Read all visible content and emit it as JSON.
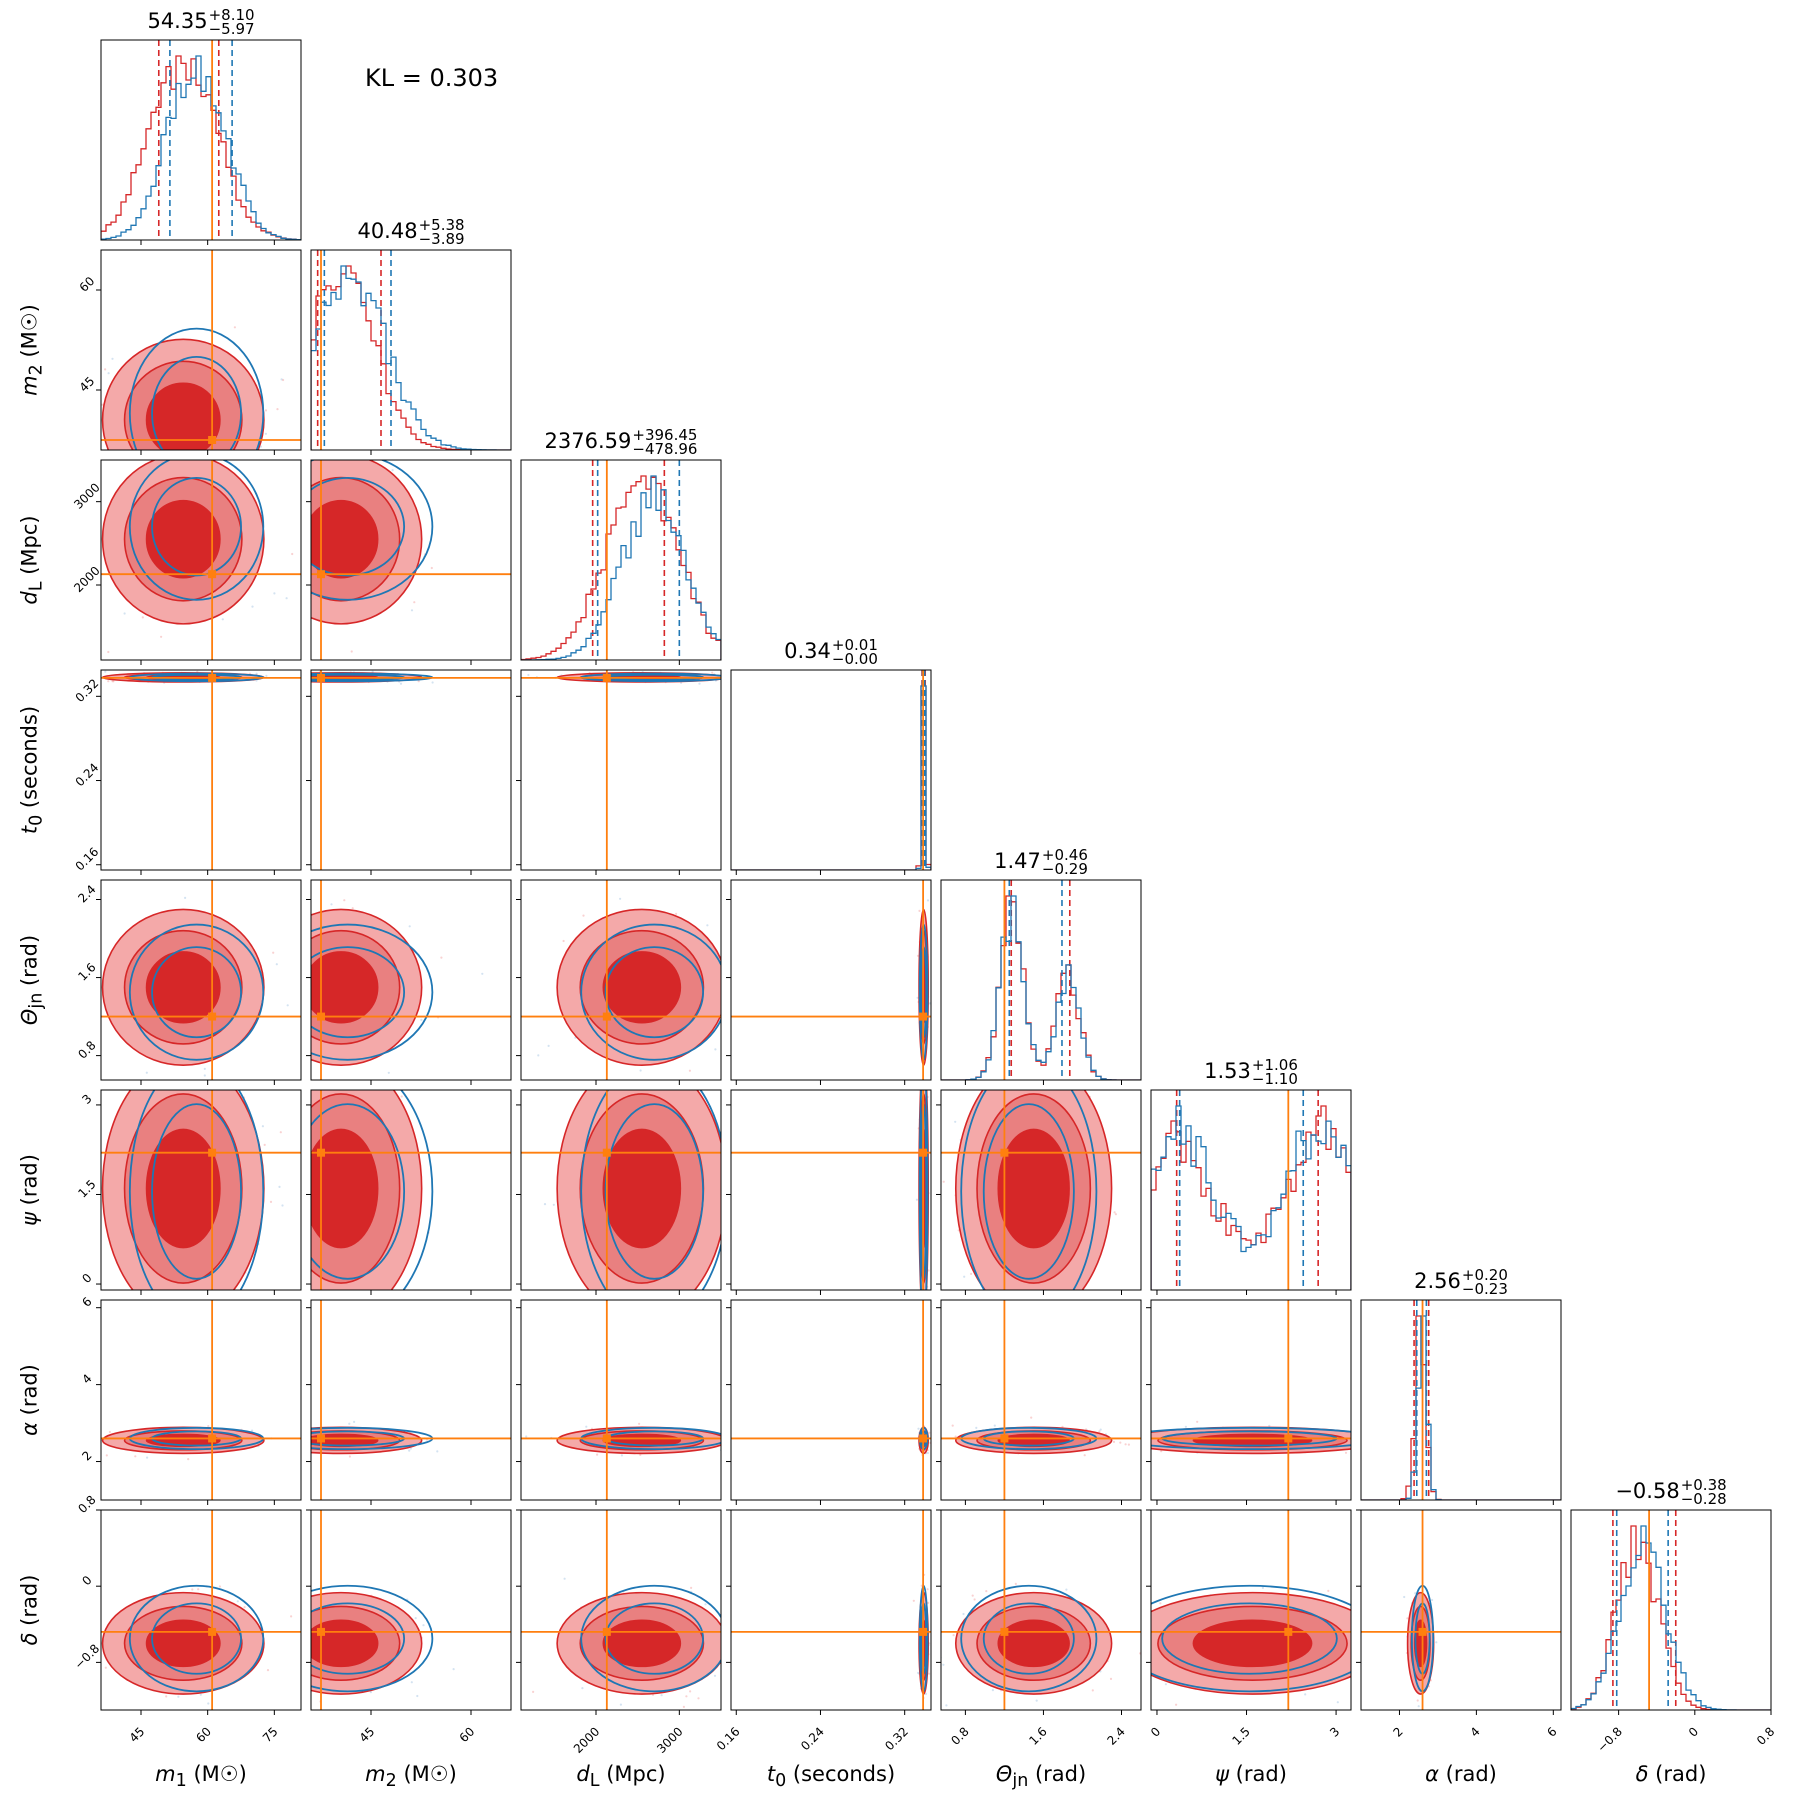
{
  "annotation": "KL = 0.303",
  "chart_data": {
    "type": "corner",
    "kl_label": "KL = 0.303",
    "colors": {
      "a": "#d62728",
      "b": "#1f77b4",
      "truth": "#ff7f0e"
    },
    "parameters": [
      {
        "key": "m1",
        "label": "m1 (M☉)",
        "sym": "m",
        "sub": "1",
        "unit": "(M☉)",
        "range": [
          36,
          81
        ],
        "ticks": [
          45,
          60,
          75
        ],
        "truth": 61.0,
        "median": 54.35,
        "plus": "+8.10",
        "minus": "−5.97",
        "title_value": "54.35",
        "a_mu": 54.5,
        "a_sd": 7.5,
        "b_mu": 57.5,
        "b_sd": 6.5,
        "q_a": [
          49.0,
          62.5
        ],
        "q_b": [
          51.5,
          65.5
        ]
      },
      {
        "key": "m2",
        "label": "m2 (M☉)",
        "sym": "m",
        "sub": "2",
        "unit": "(M☉)",
        "range": [
          36,
          66
        ],
        "ticks": [
          45,
          60
        ],
        "truth": 37.5,
        "median": 40.48,
        "plus": "+5.38",
        "minus": "−3.89",
        "title_value": "40.48",
        "a_mu": 40.5,
        "a_sd": 5.0,
        "b_mu": 41.5,
        "b_sd": 5.5,
        "q_a": [
          37.0,
          46.5
        ],
        "q_b": [
          38.0,
          48.0
        ]
      },
      {
        "key": "dl",
        "label": "dL (Mpc)",
        "sym": "d",
        "sub": "L",
        "unit": "(Mpc)",
        "range": [
          1100,
          3500
        ],
        "ticks": [
          2000,
          3000
        ],
        "truth": 2130,
        "median": 2376.59,
        "plus": "+396.45",
        "minus": "−478.96",
        "title_value": "2376.59",
        "a_mu": 2550,
        "a_sd": 420,
        "b_mu": 2700,
        "b_sd": 380,
        "q_a": [
          1960,
          2820
        ],
        "q_b": [
          2020,
          3000
        ]
      },
      {
        "key": "t0",
        "label": "t0 (seconds)",
        "sym": "t",
        "sub": "0",
        "unit": "(seconds)",
        "range": [
          0.155,
          0.345
        ],
        "ticks": [
          0.16,
          0.24,
          0.32
        ],
        "truth": 0.3375,
        "median": 0.34,
        "plus": "+0.01",
        "minus": "−0.00",
        "title_value": "0.34",
        "a_mu": 0.338,
        "a_sd": 0.0018,
        "b_mu": 0.338,
        "b_sd": 0.0016,
        "q_a": [
          0.3365,
          0.3395
        ],
        "q_b": [
          0.337,
          0.339
        ]
      },
      {
        "key": "theta",
        "label": "Θjn (rad)",
        "sym": "Θ",
        "sub": "jn",
        "unit": "(rad)",
        "range": [
          0.55,
          2.6
        ],
        "ticks": [
          0.8,
          1.6,
          2.4
        ],
        "truth": 1.2,
        "median": 1.47,
        "plus": "+0.46",
        "minus": "−0.29",
        "title_value": "1.47",
        "a_mu": 1.5,
        "a_sd": 0.33,
        "b_mu": 1.45,
        "b_sd": 0.3,
        "q_a": [
          1.27,
          1.87
        ],
        "q_b": [
          1.25,
          1.79
        ]
      },
      {
        "key": "psi",
        "label": "ψ (rad)",
        "sym": "ψ",
        "sub": "",
        "unit": "(rad)",
        "range": [
          -0.1,
          3.25
        ],
        "ticks": [
          0.0,
          1.5,
          3.0
        ],
        "truth": 2.2,
        "median": 1.53,
        "plus": "+1.06",
        "minus": "−1.10",
        "title_value": "1.53",
        "a_mu": 1.6,
        "a_sd": 0.9,
        "b_mu": 1.55,
        "b_sd": 0.95,
        "q_a": [
          0.33,
          2.7
        ],
        "q_b": [
          0.38,
          2.45
        ]
      },
      {
        "key": "alpha",
        "label": "α (rad)",
        "sym": "α",
        "sub": "",
        "unit": "(rad)",
        "range": [
          1.0,
          6.2
        ],
        "ticks": [
          2,
          4,
          6
        ],
        "truth": 2.6,
        "median": 2.56,
        "plus": "+0.20",
        "minus": "−0.23",
        "title_value": "2.56",
        "a_mu": 2.55,
        "a_sd": 0.14,
        "b_mu": 2.6,
        "b_sd": 0.12,
        "q_a": [
          2.38,
          2.76
        ],
        "q_b": [
          2.45,
          2.7
        ]
      },
      {
        "key": "delta",
        "label": "δ (rad)",
        "sym": "δ",
        "sub": "",
        "unit": "(rad)",
        "range": [
          -1.3,
          0.8
        ],
        "ticks": [
          -0.8,
          0.0,
          0.8
        ],
        "truth": -0.48,
        "median": -0.58,
        "plus": "+0.38",
        "minus": "−0.28",
        "title_value": "−0.58",
        "a_mu": -0.6,
        "a_sd": 0.22,
        "b_mu": -0.55,
        "b_sd": 0.24,
        "q_a": [
          -0.86,
          -0.2
        ],
        "q_b": [
          -0.82,
          -0.28
        ]
      }
    ]
  }
}
